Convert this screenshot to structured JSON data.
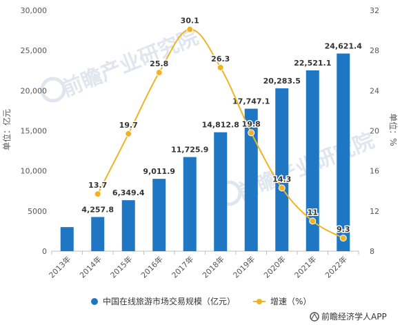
{
  "chart_data": {
    "type": "bar",
    "categories": [
      "2013年",
      "2014年",
      "2015年",
      "2016年",
      "2017年",
      "2018年",
      "2019年",
      "2020年",
      "2021年",
      "2022年"
    ],
    "series": [
      {
        "name": "中国在线旅游市场交易规模（亿元）",
        "type": "bar",
        "axis": "left",
        "color": "#1f77c4",
        "values": [
          3000,
          4257.8,
          6349.4,
          9011.9,
          11725.9,
          14812.8,
          17747.1,
          20283.5,
          22521.1,
          24621.4
        ],
        "labels": [
          "",
          "4,257.8",
          "6,349.4",
          "9,011.9",
          "11,725.9",
          "14,812.8",
          "17,747.1",
          "20,283.5",
          "22,521.1",
          "24,621.4"
        ]
      },
      {
        "name": "增速（%）",
        "type": "line",
        "axis": "right",
        "color": "#f0b323",
        "values": [
          null,
          13.7,
          19.7,
          25.8,
          30.1,
          26.3,
          19.8,
          14.3,
          11,
          9.3
        ],
        "labels": [
          "",
          "13.7",
          "19.7",
          "25.8",
          "30.1",
          "26.3",
          "19.8",
          "14.3",
          "11",
          "9.3"
        ]
      }
    ],
    "y_left": {
      "label": "单位：亿元",
      "range": [
        0,
        30000
      ],
      "ticks": [
        "0",
        "5000",
        "10,000",
        "15,000",
        "20,000",
        "25,000",
        "30,000"
      ],
      "tick_values": [
        0,
        5000,
        10000,
        15000,
        20000,
        25000,
        30000
      ]
    },
    "y_right": {
      "label": "单位：%",
      "range": [
        8,
        32
      ],
      "ticks": [
        "8",
        "12",
        "16",
        "20",
        "24",
        "28",
        "32"
      ],
      "tick_values": [
        8,
        12,
        16,
        20,
        24,
        28,
        32
      ]
    },
    "grid": false,
    "legend_position": "bottom",
    "source": "前瞻经济学人APP",
    "watermark": "前瞻产业研究院"
  }
}
